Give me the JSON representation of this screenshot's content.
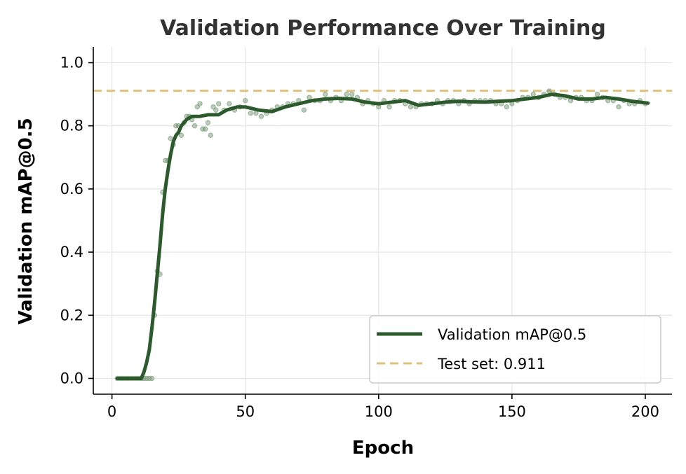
{
  "chart_data": {
    "type": "line",
    "title": "Validation Performance Over Training",
    "xlabel": "Epoch",
    "ylabel": "Validation mAP@0.5",
    "xlim": [
      -7,
      210
    ],
    "ylim": [
      -0.05,
      1.05
    ],
    "xticks": [
      0,
      50,
      100,
      150,
      200
    ],
    "yticks": [
      0.0,
      0.2,
      0.4,
      0.6,
      0.8,
      1.0
    ],
    "xtick_labels": [
      "0",
      "50",
      "100",
      "150",
      "200"
    ],
    "ytick_labels": [
      "0.0",
      "0.2",
      "0.4",
      "0.6",
      "0.8",
      "1.0"
    ],
    "grid": true,
    "legend_position": "lower-right",
    "series": [
      {
        "name": "Validation mAP@0.5",
        "style": "solid",
        "color": "#2d5a2d",
        "x": [
          2,
          4,
          6,
          8,
          10,
          11,
          12,
          13,
          14,
          15,
          16,
          17,
          18,
          19,
          20,
          21,
          22,
          23,
          24,
          25,
          26,
          28,
          30,
          33,
          36,
          40,
          43,
          47,
          50,
          55,
          60,
          65,
          70,
          75,
          80,
          85,
          90,
          95,
          100,
          105,
          110,
          115,
          120,
          125,
          130,
          135,
          140,
          145,
          150,
          155,
          160,
          165,
          170,
          175,
          180,
          185,
          190,
          195,
          201
        ],
        "y": [
          0.0,
          0.0,
          0.0,
          0.0,
          0.0,
          0.0,
          0.02,
          0.05,
          0.09,
          0.16,
          0.24,
          0.33,
          0.42,
          0.52,
          0.6,
          0.66,
          0.71,
          0.75,
          0.77,
          0.78,
          0.8,
          0.82,
          0.83,
          0.83,
          0.835,
          0.835,
          0.85,
          0.86,
          0.86,
          0.85,
          0.845,
          0.86,
          0.87,
          0.88,
          0.885,
          0.887,
          0.885,
          0.875,
          0.87,
          0.875,
          0.88,
          0.865,
          0.87,
          0.875,
          0.878,
          0.876,
          0.875,
          0.878,
          0.88,
          0.885,
          0.89,
          0.9,
          0.895,
          0.885,
          0.885,
          0.89,
          0.885,
          0.878,
          0.872
        ]
      },
      {
        "name": "Test set: 0.911",
        "style": "dashed",
        "color": "#e0c07a",
        "y_constant": 0.911
      }
    ],
    "scatter": {
      "color": "#6a8f6a",
      "x": [
        2,
        3,
        4,
        5,
        6,
        7,
        8,
        9,
        10,
        11,
        12,
        13,
        14,
        15,
        16,
        17,
        18,
        19,
        20,
        21,
        22,
        23,
        24,
        25,
        26,
        27,
        28,
        29,
        30,
        31,
        32,
        33,
        34,
        35,
        36,
        37,
        38,
        39,
        40,
        42,
        44,
        46,
        48,
        50,
        52,
        54,
        56,
        58,
        60,
        62,
        64,
        66,
        68,
        70,
        72,
        74,
        76,
        78,
        80,
        82,
        84,
        86,
        88,
        90,
        92,
        94,
        96,
        98,
        100,
        102,
        104,
        106,
        108,
        110,
        112,
        114,
        116,
        118,
        120,
        122,
        124,
        126,
        128,
        130,
        132,
        134,
        136,
        138,
        140,
        142,
        144,
        146,
        148,
        150,
        152,
        154,
        156,
        158,
        160,
        162,
        164,
        166,
        168,
        170,
        172,
        174,
        176,
        178,
        180,
        182,
        184,
        186,
        188,
        190,
        192,
        194,
        196,
        198,
        200
      ],
      "y": [
        0.0,
        0.0,
        0.0,
        0.0,
        0.0,
        0.0,
        0.0,
        0.0,
        0.0,
        0.0,
        0.0,
        0.0,
        0.0,
        0.0,
        0.2,
        0.34,
        0.33,
        0.59,
        0.69,
        0.69,
        0.76,
        0.74,
        0.8,
        0.8,
        0.77,
        0.81,
        0.83,
        0.83,
        0.82,
        0.8,
        0.86,
        0.87,
        0.79,
        0.79,
        0.81,
        0.77,
        0.86,
        0.85,
        0.87,
        0.85,
        0.87,
        0.85,
        0.86,
        0.88,
        0.84,
        0.84,
        0.83,
        0.84,
        0.85,
        0.86,
        0.86,
        0.87,
        0.87,
        0.88,
        0.85,
        0.89,
        0.88,
        0.88,
        0.9,
        0.88,
        0.89,
        0.88,
        0.9,
        0.9,
        0.89,
        0.87,
        0.88,
        0.87,
        0.86,
        0.88,
        0.86,
        0.88,
        0.88,
        0.87,
        0.86,
        0.86,
        0.87,
        0.87,
        0.87,
        0.88,
        0.87,
        0.88,
        0.88,
        0.87,
        0.88,
        0.87,
        0.88,
        0.88,
        0.88,
        0.88,
        0.87,
        0.87,
        0.86,
        0.87,
        0.88,
        0.89,
        0.89,
        0.9,
        0.89,
        0.9,
        0.91,
        0.9,
        0.89,
        0.89,
        0.88,
        0.89,
        0.89,
        0.88,
        0.88,
        0.9,
        0.89,
        0.88,
        0.88,
        0.86,
        0.88,
        0.87,
        0.87,
        0.88,
        0.87
      ]
    }
  },
  "colors": {
    "validation_line": "#2d5a2d",
    "scatter_points": "#6a8f6a",
    "test_line": "#e0c07a",
    "grid": "#e6e6e6",
    "title": "#333333"
  }
}
